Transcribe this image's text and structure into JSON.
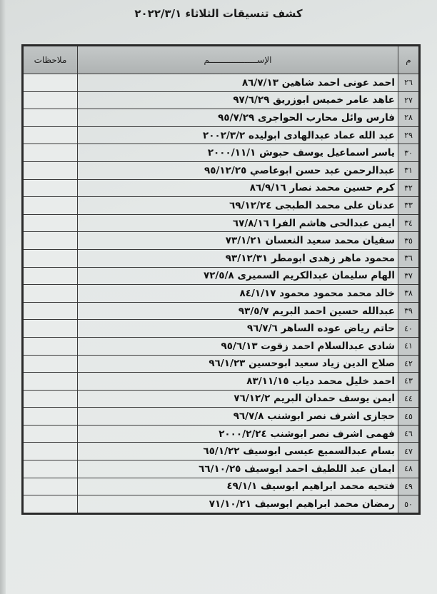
{
  "title": "كشف تنسيقات الثلاثاء ٢٠٢٢/٣/١",
  "table": {
    "headers": {
      "num": "م",
      "name": "الإســـــــــــــــــــم",
      "notes": "ملاحظات"
    },
    "rows": [
      {
        "num": "٢٦",
        "name": "احمد عونى احمد شاهين",
        "date": "٨٦/٧/١٣"
      },
      {
        "num": "٢٧",
        "name": "عاهد عامر خميس ابوزريق",
        "date": "٩٧/٦/٢٩"
      },
      {
        "num": "٢٨",
        "name": "فارس وائل محارب الحواجرى",
        "date": "٩٥/٧/٢٩"
      },
      {
        "num": "٢٩",
        "name": "عبد الله عماد عبدالهادى ابوليده",
        "date": "٢٠٠٢/٣/٢"
      },
      {
        "num": "٣٠",
        "name": "ياسر اسماعيل يوسف حبوش",
        "date": "٢٠٠٠/١١/١"
      },
      {
        "num": "٣١",
        "name": "عبدالرحمن عبد حسن ابوعاصي",
        "date": "٩٥/١٢/٢٥"
      },
      {
        "num": "٣٢",
        "name": "كرم حسين محمد نصار",
        "date": "٨٦/٩/١٦"
      },
      {
        "num": "٣٣",
        "name": "عدنان على محمد الطبجى",
        "date": "٦٩/١٢/٢٤"
      },
      {
        "num": "٣٤",
        "name": "ايمن عبدالحى هاشم الفرا",
        "date": "٦٧/٨/١٦"
      },
      {
        "num": "٣٥",
        "name": "سفيان محمد سعيد النعسان",
        "date": "٧٣/١/٢١"
      },
      {
        "num": "٣٦",
        "name": "محمود ماهر زهدى ابومطر",
        "date": "٩٣/١٢/٣١"
      },
      {
        "num": "٣٧",
        "name": "الهام سليمان عبدالكريم السميرى",
        "date": "٧٢/٥/٨"
      },
      {
        "num": "٣٨",
        "name": "خالد محمد محمود محمود",
        "date": "٨٤/١/١٧"
      },
      {
        "num": "٣٩",
        "name": "عبدالله حسين احمد البريم",
        "date": "٩٣/٥/٧"
      },
      {
        "num": "٤٠",
        "name": "حاتم رياض عوده الساهر",
        "date": "٩٦/٧/٦"
      },
      {
        "num": "٤١",
        "name": "شادى عبدالسلام احمد زقوت",
        "date": "٩٥/٦/١٣"
      },
      {
        "num": "٤٢",
        "name": "صلاح الدين زياد سعيد ابوحسين",
        "date": "٩٦/١/٢٣"
      },
      {
        "num": "٤٣",
        "name": "احمد خليل محمد دياب",
        "date": "٨٣/١١/١٥"
      },
      {
        "num": "٤٤",
        "name": "ايمن يوسف حمدان البريم",
        "date": "٧٦/١٢/٢"
      },
      {
        "num": "٤٥",
        "name": "حجازى اشرف نصر ابوشنب",
        "date": "٩٦/٧/٨"
      },
      {
        "num": "٤٦",
        "name": "فهمى اشرف نصر ابوشنب",
        "date": "٢٠٠٠/٢/٢٤"
      },
      {
        "num": "٤٧",
        "name": "بسام عبدالسميع عيسى ابوسيف",
        "date": "٦٥/١/٢٢"
      },
      {
        "num": "٤٨",
        "name": "ايمان عبد اللطيف احمد ابوسيف",
        "date": "٦٦/١٠/٢٥"
      },
      {
        "num": "٤٩",
        "name": "فتحيه محمد ابراهيم ابوسيف",
        "date": "٤٩/١/١"
      },
      {
        "num": "٥٠",
        "name": "رمضان محمد ابراهيم ابوسيف",
        "date": "٧١/١٠/٢١"
      }
    ]
  }
}
